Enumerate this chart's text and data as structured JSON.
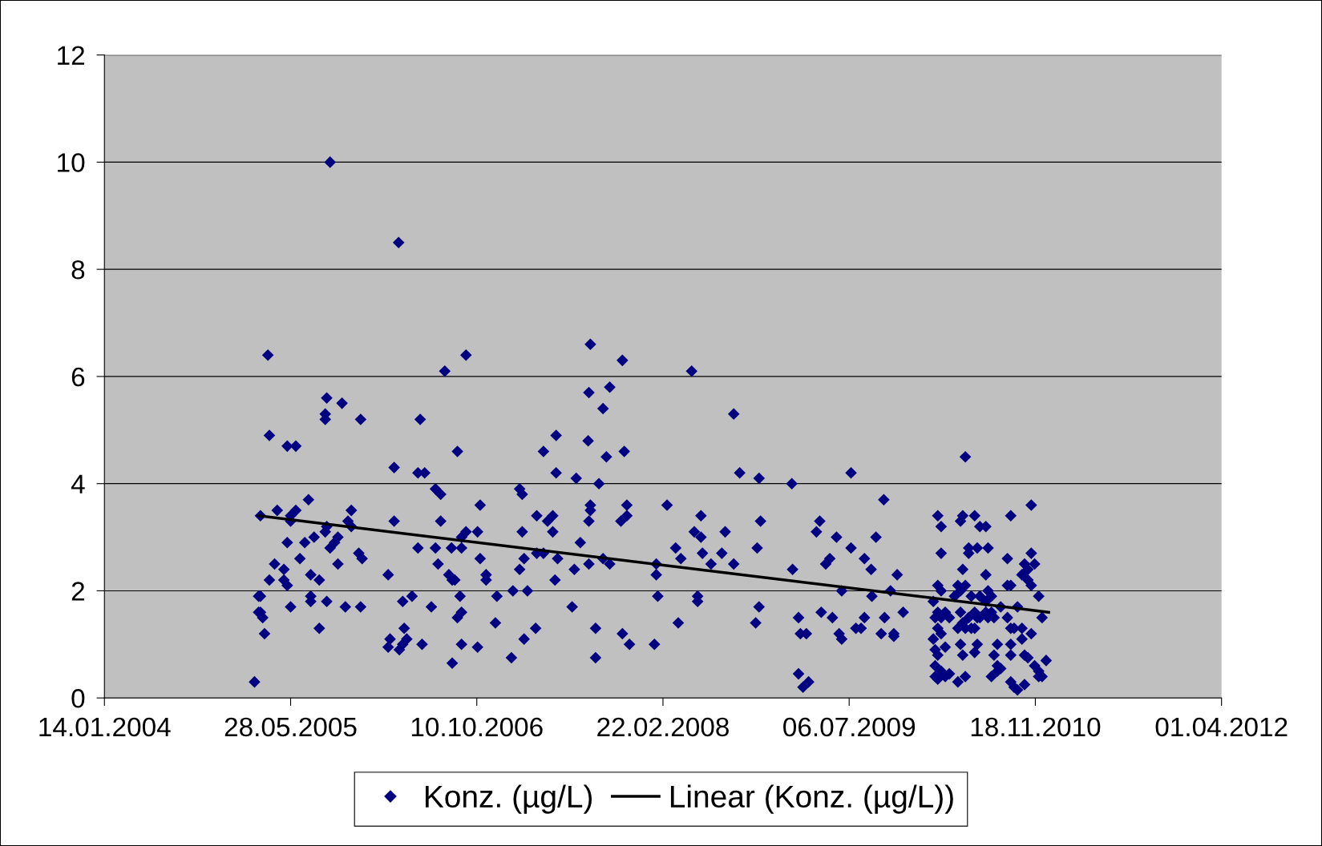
{
  "chart_data": {
    "type": "scatter",
    "xlim": [
      "2004-01-14",
      "2012-04-01"
    ],
    "xticks": [
      {
        "value": "2004-01-14",
        "label": "14.01.2004"
      },
      {
        "value": "2005-05-28",
        "label": "28.05.2005"
      },
      {
        "value": "2006-10-10",
        "label": "10.10.2006"
      },
      {
        "value": "2008-02-22",
        "label": "22.02.2008"
      },
      {
        "value": "2009-07-06",
        "label": "06.07.2009"
      },
      {
        "value": "2010-11-18",
        "label": "18.11.2010"
      },
      {
        "value": "2012-04-01",
        "label": "01.04.2012"
      }
    ],
    "ylim": [
      0,
      12
    ],
    "yticks": [
      0,
      2,
      4,
      6,
      8,
      10,
      12
    ],
    "grid": "y",
    "legend": "bottom",
    "marker": "diamond",
    "series": [
      {
        "name": "Konz. (µg/L)",
        "color": "#000080",
        "x": [
          "2005-02-20",
          "2005-03-03",
          "2005-03-03",
          "2005-03-08",
          "2005-03-08",
          "2005-03-08",
          "2005-03-14",
          "2005-03-19",
          "2005-03-28",
          "2005-04-01",
          "2005-04-01",
          "2005-04-15",
          "2005-04-22",
          "2005-05-10",
          "2005-05-10",
          "2005-05-19",
          "2005-05-19",
          "2005-05-19",
          "2005-05-28",
          "2005-05-28",
          "2005-05-28",
          "2005-06-11",
          "2005-06-11",
          "2005-06-22",
          "2005-07-05",
          "2005-07-15",
          "2005-07-21",
          "2005-07-21",
          "2005-07-21",
          "2005-07-30",
          "2005-08-13",
          "2005-08-13",
          "2005-08-29",
          "2005-08-29",
          "2005-08-29",
          "2005-09-02",
          "2005-09-02",
          "2005-09-02",
          "2005-09-11",
          "2005-09-11",
          "2005-09-23",
          "2005-10-02",
          "2005-10-02",
          "2005-10-13",
          "2005-10-22",
          "2005-10-29",
          "2005-11-07",
          "2005-11-07",
          "2005-11-27",
          "2005-12-02",
          "2005-12-02",
          "2005-12-06",
          "2006-02-14",
          "2006-02-14",
          "2006-02-19",
          "2006-03-02",
          "2006-03-02",
          "2006-03-14",
          "2006-03-16",
          "2006-03-25",
          "2006-03-25",
          "2006-03-29",
          "2006-04-05",
          "2006-04-19",
          "2006-05-05",
          "2006-05-05",
          "2006-05-11",
          "2006-05-16",
          "2006-05-23",
          "2006-06-10",
          "2006-06-21",
          "2006-06-21",
          "2006-06-28",
          "2006-07-05",
          "2006-07-05",
          "2006-07-16",
          "2006-07-27",
          "2006-08-03",
          "2006-08-05",
          "2006-08-05",
          "2006-08-12",
          "2006-08-19",
          "2006-08-19",
          "2006-08-26",
          "2006-08-30",
          "2006-08-30",
          "2006-08-30",
          "2006-08-30",
          "2006-09-11",
          "2006-09-11",
          "2006-10-12",
          "2006-10-12",
          "2006-10-19",
          "2006-10-19",
          "2006-11-04",
          "2006-11-04",
          "2006-11-29",
          "2006-12-03",
          "2007-01-11",
          "2007-01-15",
          "2007-02-02",
          "2007-02-02",
          "2007-02-09",
          "2007-02-09",
          "2007-02-14",
          "2007-02-14",
          "2007-02-23",
          "2007-03-17",
          "2007-03-20",
          "2007-03-20",
          "2007-04-07",
          "2007-04-07",
          "2007-04-18",
          "2007-05-02",
          "2007-05-02",
          "2007-05-08",
          "2007-05-11",
          "2007-05-11",
          "2007-05-15",
          "2007-06-23",
          "2007-06-29",
          "2007-07-04",
          "2007-07-15",
          "2007-08-05",
          "2007-08-07",
          "2007-08-07",
          "2007-08-07",
          "2007-08-11",
          "2007-08-11",
          "2007-08-11",
          "2007-08-25",
          "2007-08-25",
          "2007-09-03",
          "2007-09-14",
          "2007-09-14",
          "2007-09-23",
          "2007-10-02",
          "2007-10-02",
          "2007-11-01",
          "2007-11-05",
          "2007-11-05",
          "2007-11-10",
          "2007-11-17",
          "2007-11-17",
          "2007-11-24",
          "2008-01-30",
          "2008-02-04",
          "2008-02-04",
          "2008-02-08",
          "2008-03-04",
          "2008-03-27",
          "2008-04-03",
          "2008-04-10",
          "2008-05-09",
          "2008-05-16",
          "2008-05-25",
          "2008-05-25",
          "2008-06-03",
          "2008-06-03",
          "2008-06-07",
          "2008-06-30",
          "2008-07-29",
          "2008-08-07",
          "2008-08-30",
          "2008-08-30",
          "2008-09-15",
          "2008-10-28",
          "2008-11-01",
          "2008-11-06",
          "2008-11-06",
          "2008-11-10",
          "2009-02-02",
          "2009-02-04",
          "2009-02-20",
          "2009-02-20",
          "2009-02-25",
          "2009-03-04",
          "2009-03-13",
          "2009-03-19",
          "2009-04-09",
          "2009-04-18",
          "2009-04-22",
          "2009-05-04",
          "2009-05-15",
          "2009-05-22",
          "2009-06-02",
          "2009-06-09",
          "2009-06-16",
          "2009-06-16",
          "2009-07-11",
          "2009-07-11",
          "2009-07-24",
          "2009-08-07",
          "2009-08-16",
          "2009-08-16",
          "2009-09-03",
          "2009-09-05",
          "2009-09-16",
          "2009-09-30",
          "2009-10-07",
          "2009-10-09",
          "2009-10-25",
          "2009-11-03",
          "2009-11-03",
          "2009-11-12",
          "2009-11-28",
          "2010-02-17",
          "2010-02-17",
          "2010-02-22",
          "2010-02-22",
          "2010-02-22",
          "2010-02-22",
          "2010-03-01",
          "2010-03-01",
          "2010-03-01",
          "2010-03-01",
          "2010-03-01",
          "2010-03-01",
          "2010-03-10",
          "2010-03-10",
          "2010-03-10",
          "2010-03-10",
          "2010-03-10",
          "2010-03-10",
          "2010-03-21",
          "2010-03-21",
          "2010-03-21",
          "2010-04-01",
          "2010-04-01",
          "2010-04-15",
          "2010-04-24",
          "2010-04-24",
          "2010-04-24",
          "2010-05-01",
          "2010-05-01",
          "2010-05-01",
          "2010-05-01",
          "2010-05-07",
          "2010-05-07",
          "2010-05-07",
          "2010-05-07",
          "2010-05-14",
          "2010-05-14",
          "2010-05-14",
          "2010-05-14",
          "2010-05-23",
          "2010-05-23",
          "2010-05-23",
          "2010-05-30",
          "2010-05-30",
          "2010-06-08",
          "2010-06-08",
          "2010-06-08",
          "2010-06-08",
          "2010-06-15",
          "2010-06-15",
          "2010-06-15",
          "2010-06-22",
          "2010-06-22",
          "2010-06-22",
          "2010-07-08",
          "2010-07-08",
          "2010-07-08",
          "2010-07-08",
          "2010-07-14",
          "2010-07-14",
          "2010-07-14",
          "2010-07-23",
          "2010-07-23",
          "2010-07-23",
          "2010-07-30",
          "2010-07-30",
          "2010-08-08",
          "2010-08-08",
          "2010-08-08",
          "2010-08-17",
          "2010-08-17",
          "2010-09-04",
          "2010-09-04",
          "2010-09-04",
          "2010-09-13",
          "2010-09-13",
          "2010-09-13",
          "2010-09-13",
          "2010-09-13",
          "2010-09-13",
          "2010-09-22",
          "2010-09-22",
          "2010-10-01",
          "2010-10-01",
          "2010-10-13",
          "2010-10-13",
          "2010-10-13",
          "2010-10-20",
          "2010-10-20",
          "2010-10-20",
          "2010-10-29",
          "2010-10-29",
          "2010-10-29",
          "2010-11-07",
          "2010-11-07",
          "2010-11-07",
          "2010-11-07",
          "2010-11-16",
          "2010-11-16",
          "2010-11-27",
          "2010-11-27",
          "2010-11-27",
          "2010-12-06",
          "2010-12-06",
          "2010-12-17"
        ],
        "values": [
          0.3,
          1.9,
          1.6,
          3.4,
          1.9,
          1.6,
          1.5,
          1.2,
          6.4,
          4.9,
          2.2,
          2.5,
          3.5,
          2.4,
          2.2,
          4.7,
          2.1,
          2.9,
          3.4,
          3.3,
          1.7,
          4.7,
          3.5,
          2.6,
          2.9,
          3.7,
          2.3,
          1.9,
          1.8,
          3.0,
          2.2,
          1.3,
          5.2,
          5.3,
          3.1,
          5.6,
          3.2,
          1.8,
          10.0,
          2.8,
          2.9,
          2.5,
          3.0,
          5.5,
          1.7,
          3.3,
          3.5,
          3.2,
          2.7,
          5.2,
          1.7,
          2.6,
          2.3,
          0.95,
          1.1,
          4.3,
          3.3,
          8.5,
          0.9,
          1.8,
          1.0,
          1.3,
          1.1,
          1.9,
          4.2,
          2.8,
          5.2,
          1.0,
          4.2,
          1.7,
          2.8,
          3.9,
          2.5,
          3.8,
          3.3,
          6.1,
          2.3,
          2.8,
          0.65,
          2.2,
          2.2,
          4.6,
          1.5,
          1.9,
          1.0,
          1.6,
          2.8,
          3.0,
          6.4,
          3.1,
          0.95,
          3.1,
          3.6,
          2.6,
          2.3,
          2.2,
          1.4,
          1.9,
          0.75,
          2.0,
          3.9,
          2.4,
          3.8,
          3.1,
          1.1,
          2.6,
          2.0,
          1.3,
          3.4,
          2.7,
          4.6,
          2.7,
          3.3,
          3.1,
          3.4,
          2.2,
          4.9,
          4.2,
          2.6,
          1.7,
          2.4,
          4.1,
          2.9,
          4.8,
          3.3,
          2.5,
          5.7,
          6.6,
          3.6,
          3.5,
          1.3,
          0.75,
          4.0,
          5.4,
          2.6,
          4.5,
          5.8,
          2.5,
          3.3,
          6.3,
          1.2,
          4.6,
          3.6,
          3.4,
          1.0,
          1.0,
          2.5,
          2.3,
          1.9,
          3.6,
          2.8,
          1.4,
          2.6,
          6.1,
          3.1,
          1.8,
          1.9,
          3.0,
          3.4,
          2.7,
          2.5,
          2.7,
          3.1,
          5.3,
          2.5,
          4.2,
          1.4,
          2.8,
          4.1,
          1.7,
          3.3,
          4.0,
          2.4,
          1.5,
          0.45,
          1.2,
          0.2,
          1.2,
          0.3,
          3.1,
          3.3,
          1.6,
          2.5,
          2.6,
          1.5,
          3.0,
          1.2,
          2.0,
          1.1,
          4.2,
          2.8,
          1.3,
          1.3,
          2.6,
          1.5,
          2.4,
          1.9,
          3.0,
          1.2,
          3.7,
          1.5,
          2.0,
          1.2,
          1.15,
          2.3,
          1.6,
          1.8,
          1.1,
          1.5,
          0.9,
          0.6,
          0.4,
          3.4,
          2.1,
          1.6,
          1.3,
          0.8,
          0.35,
          3.2,
          2.7,
          2.0,
          1.5,
          1.2,
          0.5,
          1.6,
          0.95,
          0.4,
          1.5,
          0.45,
          1.9,
          2.1,
          1.3,
          0.3,
          3.3,
          2.0,
          1.6,
          1.0,
          3.4,
          2.4,
          1.4,
          0.8,
          4.5,
          2.1,
          1.3,
          0.4,
          2.8,
          1.5,
          2.7,
          1.9,
          1.3,
          3.4,
          1.6,
          1.3,
          0.85,
          2.8,
          1.5,
          1.0,
          3.2,
          1.5,
          1.9,
          3.2,
          2.3,
          1.8,
          1.6,
          2.8,
          2.0,
          1.5,
          1.9,
          1.6,
          0.4,
          1.5,
          0.8,
          1.0,
          0.6,
          0.5,
          1.7,
          0.55,
          2.6,
          1.5,
          2.1,
          3.4,
          2.1,
          1.3,
          1.0,
          0.8,
          0.3,
          1.3,
          0.2,
          0.15,
          1.7,
          2.3,
          1.3,
          1.1,
          2.5,
          0.8,
          0.25,
          2.2,
          2.4,
          0.75,
          3.6,
          2.7,
          2.1,
          1.2,
          2.5,
          0.6,
          0.5,
          1.9,
          0.4,
          1.5,
          0.4,
          0.7
        ]
      },
      {
        "name": "Linear (Konz. (µg/L))",
        "color": "#000000",
        "type": "line",
        "marker": "none",
        "x": [
          "2005-03-03",
          "2010-12-24"
        ],
        "values": [
          3.4,
          1.6
        ]
      }
    ]
  }
}
